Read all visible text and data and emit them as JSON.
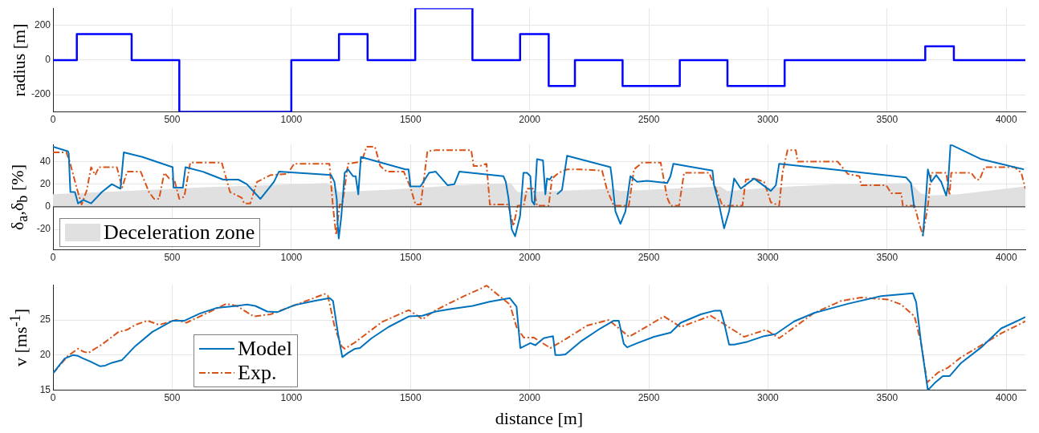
{
  "chart_data": [
    {
      "type": "step",
      "ylabel": "radius [m]",
      "xlim": [
        0,
        4080
      ],
      "xticks": [
        0,
        500,
        1000,
        1500,
        2000,
        2500,
        3000,
        3500,
        4000
      ],
      "ylim": [
        -300,
        300
      ],
      "yticks": [
        -200,
        0,
        200
      ],
      "grid": true,
      "marker": "none",
      "series": [
        {
          "color": "#0000ff",
          "x": [
            0,
            100,
            330,
            530,
            1000,
            1200,
            1320,
            1520,
            1760,
            1960,
            2080,
            2190,
            2390,
            2630,
            2830,
            3070,
            3660,
            3780,
            4080
          ],
          "values": [
            0,
            150,
            0,
            -300,
            0,
            150,
            0,
            300,
            0,
            150,
            -150,
            0,
            -150,
            0,
            -150,
            0,
            80,
            0,
            0
          ]
        }
      ]
    },
    {
      "type": "line",
      "ylabel": "δ$_{a}$,δ$_{b}$ [%]",
      "xlim": [
        0,
        4080
      ],
      "xticks": [
        0,
        500,
        1000,
        1500,
        2000,
        2500,
        3000,
        3500,
        4000
      ],
      "ylim": [
        -38,
        55
      ],
      "yticks": [
        -20,
        0,
        20,
        40
      ],
      "grid": true,
      "marker": "none",
      "legend": "bottom left",
      "ref_lines": [
        {
          "axis": "y",
          "value": 0,
          "color": "#404040"
        }
      ],
      "series": [
        {
          "type": "area",
          "name": "Deceleration zone",
          "color": "#e0e0e0",
          "x": [
            0,
            300,
            600,
            900,
            1150,
            1180,
            1200,
            1400,
            1700,
            1920,
            1950,
            2100,
            2350,
            2380,
            2600,
            2800,
            2830,
            3000,
            3300,
            3600,
            3640,
            3680,
            3800,
            4080
          ],
          "values": [
            11,
            14,
            17,
            19,
            21,
            17,
            13,
            15,
            19,
            21,
            13,
            14,
            16,
            14,
            16,
            18,
            14,
            17,
            20,
            21,
            12,
            10,
            11,
            18
          ]
        },
        {
          "color": "#0072bd",
          "line_style": "solid",
          "x": [
            0,
            63,
            66,
            73,
            92,
            105,
            127,
            160,
            205,
            247,
            283,
            297,
            375,
            502,
            506,
            545,
            556,
            629,
            714,
            778,
            813,
            870,
            927,
            948,
            1167,
            1181,
            1191,
            1194,
            1199,
            1210,
            1224,
            1238,
            1259,
            1270,
            1281,
            1292,
            1479,
            1492,
            1500,
            1542,
            1578,
            1606,
            1656,
            1684,
            1705,
            1890,
            1900,
            1911,
            1925,
            1939,
            1960,
            1974,
            1989,
            2003,
            2010,
            2020,
            2031,
            2056,
            2066,
            2073,
            2084,
            2094,
            2104,
            2115,
            2136,
            2157,
            2339,
            2346,
            2360,
            2381,
            2402,
            2423,
            2451,
            2493,
            2577,
            2591,
            2603,
            2767,
            2774,
            2795,
            2816,
            2837,
            2858,
            2886,
            2942,
            3012,
            3033,
            3047,
            3579,
            3600,
            3614,
            3628,
            3650,
            3664,
            3671,
            3685,
            3706,
            3727,
            3748,
            3755,
            3766,
            3895,
            4074
          ],
          "values": [
            53,
            49,
            47,
            13,
            13,
            3,
            6,
            3,
            13,
            20,
            16,
            48,
            44,
            35,
            17,
            17,
            35,
            31,
            24,
            24,
            20,
            7,
            22,
            31,
            28,
            22,
            6,
            -14,
            -28,
            -8,
            30,
            33,
            27,
            27,
            11,
            44,
            33,
            33,
            18,
            18,
            30,
            31,
            19,
            20,
            31,
            27,
            22,
            8,
            -20,
            -26,
            -8,
            30,
            30,
            27,
            5,
            2,
            42,
            41,
            11,
            25,
            24,
            27,
            null,
            11,
            15,
            45,
            35,
            24,
            -4,
            -15,
            -4,
            27,
            22,
            23,
            21,
            27,
            38,
            32,
            19,
            2,
            -19,
            -4,
            25,
            16,
            25,
            14,
            19,
            38,
            26,
            21,
            -1,
            null,
            -26,
            11,
            33,
            22,
            28,
            22,
            10,
            18,
            55,
            42,
            33
          ]
        },
        {
          "color": "#d95319",
          "line_style": "dashed",
          "x": [
            0,
            56,
            70,
            99,
            120,
            141,
            160,
            177,
            193,
            268,
            290,
            311,
            368,
            403,
            424,
            445,
            467,
            488,
            509,
            530,
            551,
            576,
            708,
            743,
            792,
            802,
            828,
            856,
            913,
            984,
            1012,
            1160,
            1174,
            1188,
            1203,
            1214,
            1238,
            1295,
            1316,
            1351,
            1373,
            1401,
            1472,
            1500,
            1521,
            1543,
            1571,
            1606,
            1755,
            1765,
            1790,
            1819,
            1833,
            1910,
            1932,
            1950,
            1975,
            1989,
            2017,
            2031,
            2080,
            2094,
            2122,
            2157,
            2213,
            2304,
            2325,
            2353,
            2416,
            2438,
            2472,
            2550,
            2577,
            2592,
            2627,
            2648,
            2753,
            2781,
            2809,
            2893,
            2907,
            2942,
            2984,
            3012,
            3047,
            3061,
            3082,
            3117,
            3124,
            3292,
            3335,
            3384,
            3391,
            3496,
            3517,
            3559,
            3566,
            3615,
            3636,
            3650,
            3671,
            3685,
            3748,
            3762,
            3769,
            3853,
            3874,
            3888,
            3909,
            4035,
            4063,
            4080
          ],
          "values": [
            48,
            48,
            40,
            17,
            2,
            14,
            35,
            28,
            35,
            35,
            17,
            31,
            31,
            13,
            7,
            7,
            30,
            25,
            24,
            7,
            9,
            39,
            39,
            13,
            8,
            3,
            3,
            22,
            28,
            29,
            38,
            38,
            2,
            -25,
            2,
            2,
            38,
            40,
            53,
            53,
            36,
            31,
            31,
            17,
            2,
            2,
            49,
            50,
            50,
            36,
            36,
            38,
            2,
            2,
            -17,
            1,
            1,
            16,
            16,
            1,
            1,
            25,
            30,
            33,
            33,
            32,
            15,
            1,
            1,
            33,
            39,
            39,
            8,
            1,
            1,
            30,
            30,
            16,
            1,
            1,
            24,
            25,
            22,
            4,
            1,
            30,
            50,
            50,
            40,
            40,
            29,
            27,
            19,
            19,
            12,
            12,
            1,
            1,
            -16,
            -25,
            1,
            30,
            30,
            10,
            30,
            30,
            24,
            24,
            35,
            35,
            30,
            16
          ]
        }
      ]
    },
    {
      "type": "line",
      "ylabel": "v [ms$^{-1}$]",
      "xlabel": "distance [m]",
      "xlim": [
        0,
        4080
      ],
      "xticks": [
        0,
        500,
        1000,
        1500,
        2000,
        2500,
        3000,
        3500,
        4000
      ],
      "ylim": [
        15,
        30
      ],
      "yticks": [
        15,
        20,
        25
      ],
      "grid": true,
      "marker": "none",
      "legend": "bottom left",
      "series": [
        {
          "name": "Model",
          "color": "#0072bd",
          "line_style": "solid",
          "x": [
            0,
            49,
            84,
            103,
            127,
            155,
            198,
            219,
            247,
            290,
            346,
            417,
            502,
            552,
            615,
            686,
            771,
            814,
            849,
            899,
            941,
            1012,
            1097,
            1161,
            1175,
            1196,
            1214,
            1238,
            1267,
            1288,
            1337,
            1408,
            1493,
            1550,
            1606,
            1677,
            1761,
            1832,
            1917,
            1945,
            1961,
            2003,
            2024,
            2059,
            2098,
            2108,
            2129,
            2150,
            2213,
            2297,
            2353,
            2374,
            2395,
            2409,
            2452,
            2522,
            2592,
            2634,
            2718,
            2774,
            2802,
            2816,
            2837,
            2858,
            2914,
            2984,
            3033,
            3110,
            3194,
            3335,
            3475,
            3608,
            3622,
            3643,
            3671,
            3699,
            3734,
            3762,
            3811,
            3895,
            3979,
            4080
          ],
          "values": [
            17.4,
            19.5,
            20,
            19.9,
            19.5,
            19.1,
            18.4,
            18.5,
            18.9,
            19.3,
            21.3,
            23.3,
            24.9,
            24.9,
            25.9,
            26.7,
            27,
            27.2,
            27,
            26.2,
            26.1,
            27.1,
            27.7,
            28.1,
            27.7,
            23,
            19.7,
            20.3,
            20.9,
            21,
            22.4,
            24,
            25.5,
            25.6,
            26.2,
            26.6,
            27,
            27.6,
            28.1,
            26.9,
            21,
            21.7,
            21.4,
            22.4,
            22.7,
            20,
            20,
            20.1,
            21.9,
            23.8,
            24.9,
            24.9,
            21.6,
            21.1,
            21.7,
            22.6,
            23.2,
            24.6,
            25.8,
            26.3,
            26.3,
            24.6,
            21.5,
            21.5,
            21.9,
            22.7,
            23,
            24.8,
            26,
            27.3,
            28.4,
            28.8,
            27.5,
            21.6,
            15,
            16,
            17,
            17,
            18.9,
            21.1,
            23.8,
            25.4
          ]
        },
        {
          "name": "Exp.",
          "color": "#d95319",
          "line_style": "dashed",
          "x": [
            0,
            63,
            105,
            127,
            148,
            205,
            275,
            311,
            346,
            396,
            445,
            516,
            559,
            629,
            728,
            771,
            842,
            913,
            1140,
            1153,
            1182,
            1210,
            1224,
            1267,
            1380,
            1493,
            1521,
            1550,
            1606,
            1719,
            1804,
            1819,
            1917,
            1945,
            1975,
            2017,
            2087,
            2143,
            2241,
            2332,
            2417,
            2564,
            2634,
            2760,
            2900,
            2991,
            3047,
            3194,
            3306,
            3391,
            3503,
            3559,
            3615,
            3643,
            3668,
            3713,
            3755,
            3811,
            3895,
            3979,
            4080
          ],
          "values": [
            17.4,
            19.9,
            20.9,
            20.5,
            20.3,
            21.5,
            23.3,
            23.6,
            24.3,
            24.9,
            24.3,
            25,
            24.6,
            25.7,
            27.3,
            27,
            25.5,
            25.8,
            28.7,
            28.5,
            24,
            21.3,
            20.9,
            21.8,
            24.7,
            26.4,
            25.8,
            25.1,
            26.4,
            28.3,
            29.6,
            29.9,
            27.2,
            24,
            22.5,
            22.5,
            21,
            22.1,
            24.2,
            25,
            22.6,
            25.5,
            24,
            25.6,
            22.6,
            23.6,
            22.4,
            26,
            27.7,
            28.2,
            27.9,
            27.2,
            25.5,
            21.6,
            16.1,
            17.5,
            18.2,
            19.7,
            21.4,
            23.1,
            24.8
          ]
        }
      ]
    }
  ]
}
